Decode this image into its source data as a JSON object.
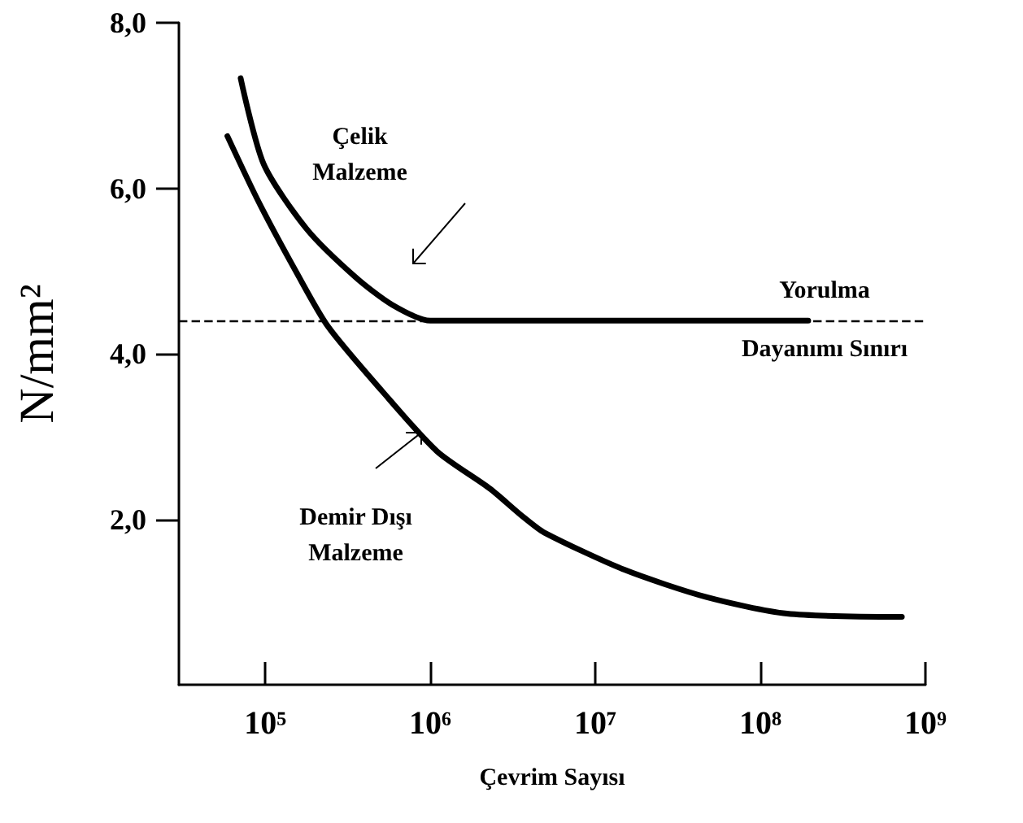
{
  "chart_data": {
    "type": "line",
    "xlabel": "Çevrim Sayısı",
    "ylabel": "N/mm²",
    "log": "x",
    "xlim": [
      30000,
      1000000000
    ],
    "xticks": [
      {
        "value": 100000,
        "label": "10⁵"
      },
      {
        "value": 1000000,
        "label": "10⁶"
      },
      {
        "value": 10000000,
        "label": "10⁷"
      },
      {
        "value": 100000000,
        "label": "10⁸"
      },
      {
        "value": 1000000000,
        "label": "10⁹"
      }
    ],
    "ylim": [
      0,
      8
    ],
    "yticks": [
      {
        "value": 2,
        "label": "2,0"
      },
      {
        "value": 4,
        "label": "4,0"
      },
      {
        "value": 6,
        "label": "6,0"
      },
      {
        "value": 8,
        "label": "8,0"
      }
    ],
    "grid": false,
    "legend": false,
    "marker": "none",
    "line_style": "solid",
    "series": [
      {
        "name": "Çelik Malzeme",
        "color": "#000000",
        "x": [
          71000,
          98000,
          178000,
          355000,
          590000,
          1000000,
          195000000
        ],
        "values": [
          7.33,
          6.29,
          5.51,
          4.92,
          4.59,
          4.4,
          4.4
        ]
      },
      {
        "name": "Demir Dışı Malzeme",
        "color": "#000000",
        "x": [
          59000,
          91000,
          155000,
          240000,
          510000,
          1100000,
          2300000,
          3600000,
          4900000,
          15000000,
          47000000,
          145000000,
          720000000
        ],
        "values": [
          6.63,
          5.84,
          4.98,
          4.33,
          3.55,
          2.82,
          2.37,
          2.04,
          1.84,
          1.39,
          1.06,
          0.86,
          0.82
        ]
      }
    ],
    "ref_lines": [
      {
        "axis": "y",
        "value": 4.4,
        "label": "Yorulma Dayanımı Sınırı",
        "color": "#000000",
        "line_style": "dashed"
      }
    ]
  }
}
